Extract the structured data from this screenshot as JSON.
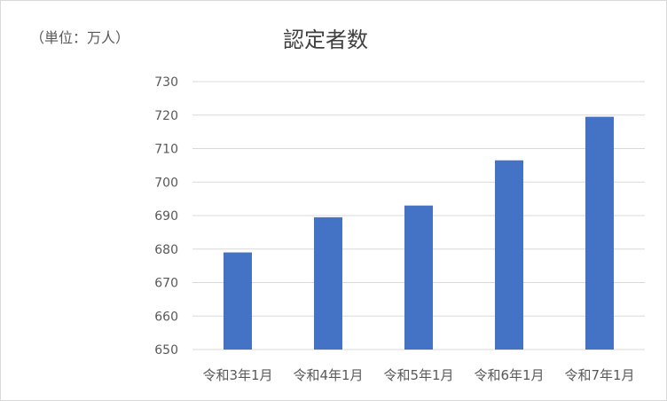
{
  "chart_data": {
    "type": "bar",
    "title": "認定者数",
    "unit_label": "（単位：万人）",
    "categories": [
      "令和3年1月",
      "令和4年1月",
      "令和5年1月",
      "令和6年1月",
      "令和7年1月"
    ],
    "values": [
      679,
      689.5,
      693,
      706.5,
      719.5
    ],
    "ylim": [
      650,
      730
    ],
    "yticks": [
      650,
      660,
      670,
      680,
      690,
      700,
      710,
      720,
      730
    ],
    "grid": true,
    "legend": "none",
    "bar_color": "#4472c4",
    "grid_color": "#d9d9d9"
  }
}
